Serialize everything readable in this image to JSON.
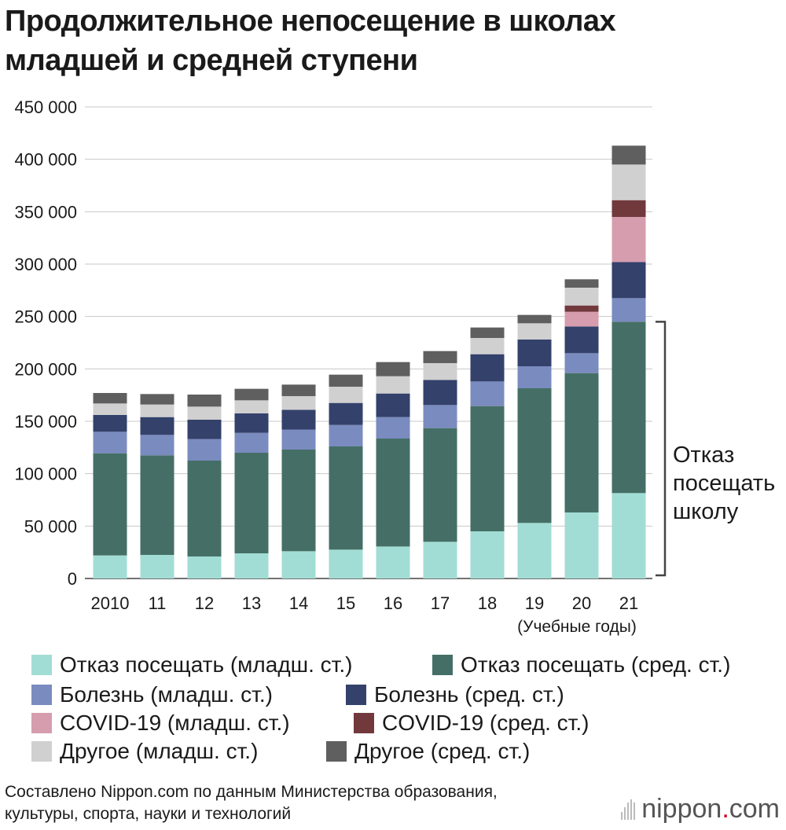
{
  "title_lines": [
    "Продолжительное непосещение в школах",
    "младшей и средней ступени"
  ],
  "chart_data": {
    "type": "bar",
    "stacked": true,
    "title": "Продолжительное непосещение в школах младшей и средней ступени",
    "xlabel": "(Учебные годы)",
    "ylabel": "",
    "ylim": [
      0,
      450000
    ],
    "yticks": [
      0,
      50000,
      100000,
      150000,
      200000,
      250000,
      300000,
      350000,
      400000,
      450000
    ],
    "ytick_labels": [
      "0",
      "50 000",
      "100 000",
      "150 000",
      "200 000",
      "250 000",
      "300 000",
      "350 000",
      "400 000",
      "450 000"
    ],
    "grid": true,
    "categories": [
      "2010",
      "11",
      "12",
      "13",
      "14",
      "15",
      "16",
      "17",
      "18",
      "19",
      "20",
      "21"
    ],
    "series": [
      {
        "name": "Отказ посещать (младш. ст.)",
        "color": "#a2ddd5",
        "values": [
          22000,
          22500,
          21000,
          24000,
          26000,
          27500,
          30500,
          35000,
          45000,
          53000,
          63000,
          81500
        ]
      },
      {
        "name": "Отказ посещать (сред. ст.)",
        "color": "#456f66",
        "values": [
          97500,
          95000,
          91500,
          96000,
          97000,
          98500,
          103000,
          108500,
          119500,
          128500,
          133000,
          163500
        ]
      },
      {
        "name": "Болезнь (младш. ст.)",
        "color": "#7a8bbf",
        "values": [
          20500,
          19500,
          20500,
          19000,
          19000,
          20500,
          20500,
          22000,
          23500,
          21000,
          19000,
          22500
        ]
      },
      {
        "name": "Болезнь (сред. ст.)",
        "color": "#33416b",
        "values": [
          16000,
          17000,
          18500,
          18500,
          19000,
          21000,
          22500,
          24000,
          26000,
          25500,
          25500,
          34500
        ]
      },
      {
        "name": "COVID-19 (младш. ст.)",
        "color": "#d69dae",
        "values": [
          0,
          0,
          0,
          0,
          0,
          0,
          0,
          0,
          0,
          0,
          14000,
          43000
        ]
      },
      {
        "name": "COVID-19 (сред. ст.)",
        "color": "#72393c",
        "values": [
          0,
          0,
          0,
          0,
          0,
          0,
          0,
          0,
          0,
          0,
          6000,
          16000
        ]
      },
      {
        "name": "Другое (младш. ст.)",
        "color": "#d0d0d0",
        "values": [
          11000,
          12000,
          12500,
          12500,
          13000,
          15500,
          16500,
          16000,
          15500,
          15500,
          17000,
          34000
        ]
      },
      {
        "name": "Другое (сред. ст.)",
        "color": "#5f5f5f",
        "values": [
          10000,
          10000,
          11500,
          11000,
          11000,
          11500,
          13500,
          11500,
          10000,
          8000,
          8000,
          18000
        ]
      }
    ],
    "annotation": {
      "text_lines": [
        "Отказ",
        "посещать",
        "школу"
      ],
      "bracket_from": 0,
      "bracket_to": 245000
    }
  },
  "source_lines": [
    "Составлено Nippon.com по данным Министерства образования,",
    "культуры, спорта, науки и технологий"
  ],
  "logo": {
    "brand": "nippon",
    "dot": ".",
    "tld": "com"
  }
}
